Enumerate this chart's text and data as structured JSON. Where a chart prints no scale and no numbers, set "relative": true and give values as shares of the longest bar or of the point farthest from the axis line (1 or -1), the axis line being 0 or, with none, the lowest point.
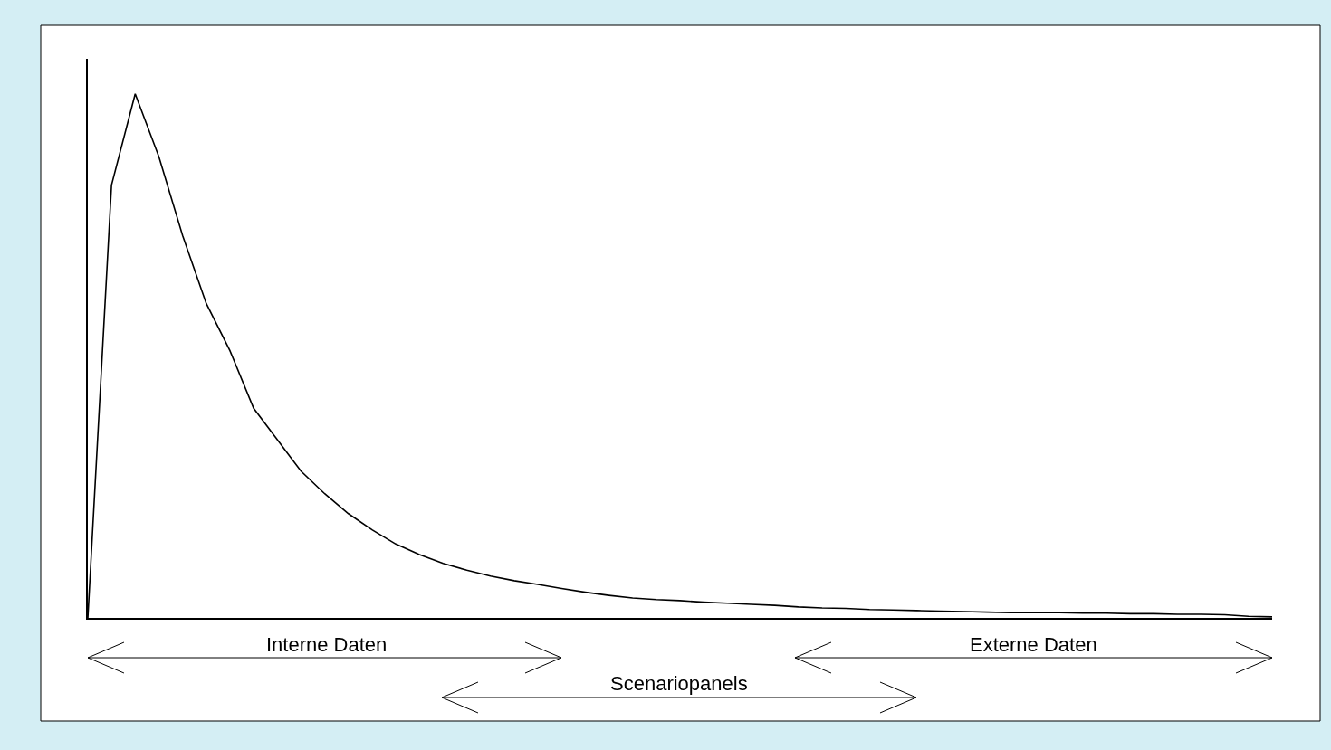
{
  "chart_data": {
    "type": "line",
    "relative": true,
    "categories": [
      null,
      null,
      null,
      null,
      null,
      null,
      null,
      null,
      null,
      null,
      null,
      null,
      null,
      null,
      null,
      null,
      null,
      null,
      null,
      null,
      null,
      null,
      null,
      null,
      null,
      null,
      null,
      null,
      null,
      null,
      null,
      null,
      null,
      null,
      null,
      null,
      null,
      null,
      null,
      null,
      null,
      null,
      null,
      null,
      null,
      null,
      null,
      null,
      null,
      null,
      null
    ],
    "series": [
      {
        "color": "#000000",
        "values": [
          0,
          0.826,
          1.0,
          0.88,
          0.73,
          0.6,
          0.51,
          0.4,
          0.34,
          0.28,
          0.237,
          0.199,
          0.168,
          0.141,
          0.121,
          0.104,
          0.091,
          0.08,
          0.071,
          0.064,
          0.056,
          0.049,
          0.043,
          0.038,
          0.035,
          0.033,
          0.03,
          0.028,
          0.026,
          0.024,
          0.021,
          0.019,
          0.018,
          0.016,
          0.015,
          0.014,
          0.013,
          0.012,
          0.011,
          0.01,
          0.01,
          0.01,
          0.009,
          0.009,
          0.008,
          0.008,
          0.007,
          0.007,
          0.006,
          0.003,
          0.002
        ]
      }
    ],
    "annotations": [
      "Interne Daten",
      "Scenariopanels",
      "Externe Daten"
    ],
    "marker": "none",
    "line_style": "solid"
  }
}
